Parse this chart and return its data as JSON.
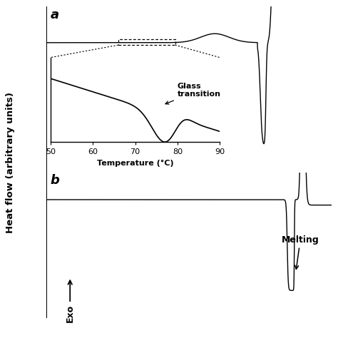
{
  "fig_width": 4.74,
  "fig_height": 4.74,
  "fig_dpi": 100,
  "bg_color": "#ffffff",
  "line_color": "#000000",
  "ylabel": "Heat flow (arbitrary units)",
  "exo_label": "Exo",
  "glass_label": "Glass\ntransition",
  "melting_label": "Melting",
  "panel_a_label": "a",
  "panel_b_label": "b",
  "inset_xlabel": "Temperature (°C)",
  "inset_xticks": [
    50,
    60,
    70,
    80,
    90
  ]
}
